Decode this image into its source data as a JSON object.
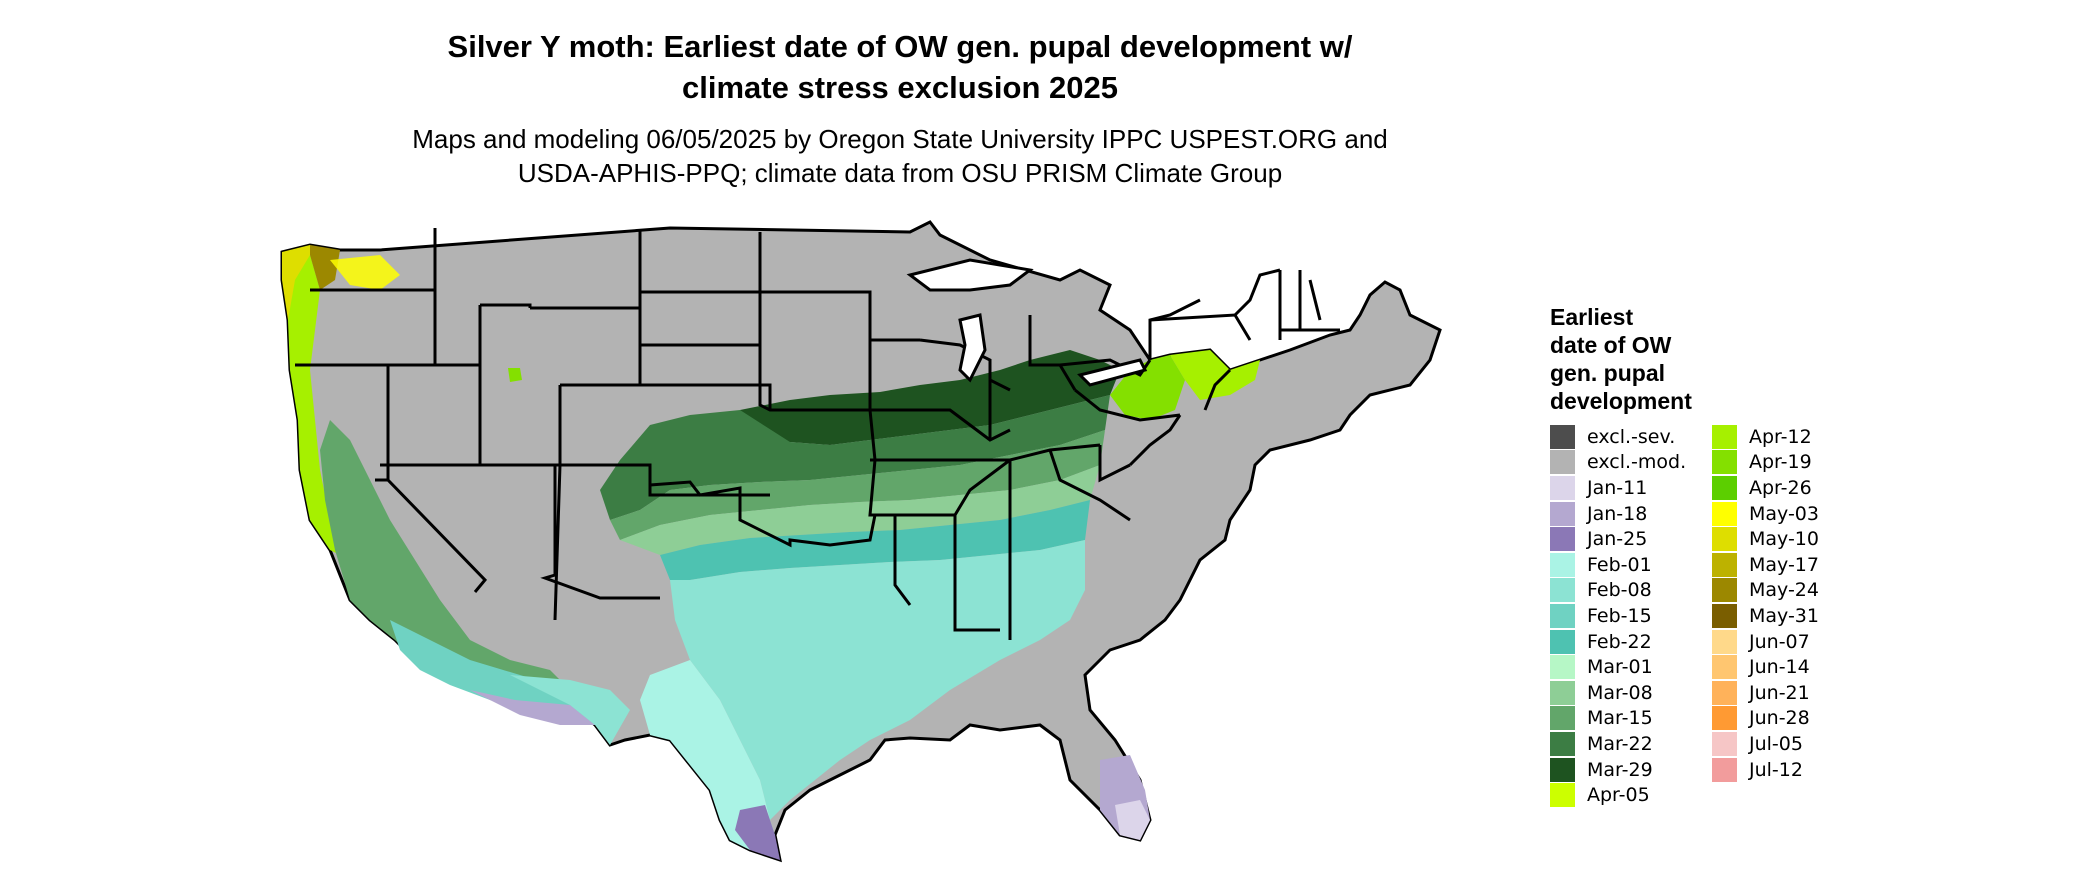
{
  "title_line1": "Silver Y moth: Earliest date of OW gen. pupal development w/",
  "title_line2": "climate stress exclusion 2025",
  "subtitle_line1": "Maps and modeling 06/05/2025 by Oregon State University IPPC USPEST.ORG and",
  "subtitle_line2": "USDA-APHIS-PPQ; climate data from OSU PRISM Climate Group",
  "legend": {
    "title_lines": [
      "Earliest",
      "date of OW",
      "gen. pupal",
      "development"
    ],
    "items": [
      {
        "label": "excl.-sev.",
        "color": "#4d4d4d"
      },
      {
        "label": "excl.-mod.",
        "color": "#b3b3b3"
      },
      {
        "label": "Jan-11",
        "color": "#dcd5ea"
      },
      {
        "label": "Jan-18",
        "color": "#b4a8d0"
      },
      {
        "label": "Jan-25",
        "color": "#8b78b6"
      },
      {
        "label": "Feb-01",
        "color": "#aaf3e5"
      },
      {
        "label": "Feb-08",
        "color": "#8ce3d3"
      },
      {
        "label": "Feb-15",
        "color": "#6fd2c2"
      },
      {
        "label": "Feb-22",
        "color": "#4ec2b1"
      },
      {
        "label": "Mar-01",
        "color": "#b6f7c6"
      },
      {
        "label": "Mar-08",
        "color": "#8ece96"
      },
      {
        "label": "Mar-15",
        "color": "#62a66a"
      },
      {
        "label": "Mar-22",
        "color": "#3c7d44"
      },
      {
        "label": "Mar-29",
        "color": "#1e5320"
      },
      {
        "label": "Apr-05",
        "color": "#ccff00"
      },
      {
        "label": "Apr-12",
        "color": "#a6f000"
      },
      {
        "label": "Apr-19",
        "color": "#84e000"
      },
      {
        "label": "Apr-26",
        "color": "#5ccf00"
      },
      {
        "label": "May-03",
        "color": "#ffff00"
      },
      {
        "label": "May-10",
        "color": "#dede00"
      },
      {
        "label": "May-17",
        "color": "#bdb200"
      },
      {
        "label": "May-24",
        "color": "#9c8800"
      },
      {
        "label": "May-31",
        "color": "#7a5e00"
      },
      {
        "label": "Jun-07",
        "color": "#ffd98a"
      },
      {
        "label": "Jun-14",
        "color": "#ffc670"
      },
      {
        "label": "Jun-21",
        "color": "#ffb25a"
      },
      {
        "label": "Jun-28",
        "color": "#ff9a33"
      },
      {
        "label": "Jul-05",
        "color": "#f6c6c6"
      },
      {
        "label": "Jul-12",
        "color": "#f29c9c"
      }
    ]
  }
}
